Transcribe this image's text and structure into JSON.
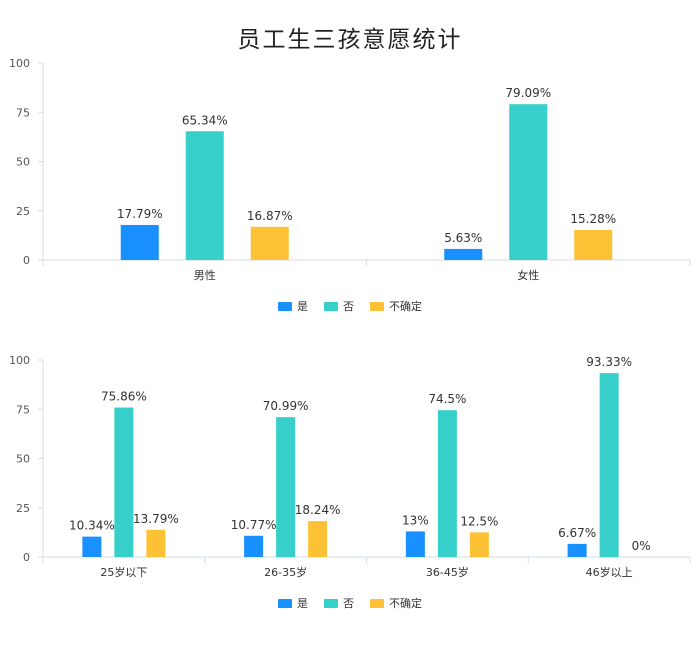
{
  "title": "员工生三孩意愿统计",
  "legend": [
    {
      "name": "是",
      "color": "#1890ff"
    },
    {
      "name": "否",
      "color": "#36cfc9"
    },
    {
      "name": "不确定",
      "color": "#fcc135"
    }
  ],
  "chart_data": [
    {
      "type": "bar",
      "categories": [
        "男性",
        "女性"
      ],
      "series": [
        {
          "name": "是",
          "values": [
            17.79,
            5.63
          ],
          "labels": [
            "17.79%",
            "5.63%"
          ]
        },
        {
          "name": "否",
          "values": [
            65.34,
            79.09
          ],
          "labels": [
            "65.34%",
            "79.09%"
          ]
        },
        {
          "name": "不确定",
          "values": [
            16.87,
            15.28
          ],
          "labels": [
            "16.87%",
            "15.28%"
          ]
        }
      ],
      "ylim": [
        0,
        100
      ],
      "yticks": [
        "0",
        "25",
        "50",
        "75",
        "100"
      ],
      "grid": false,
      "legend_position": "bottom"
    },
    {
      "type": "bar",
      "categories": [
        "25岁以下",
        "26-35岁",
        "36-45岁",
        "46岁以上"
      ],
      "series": [
        {
          "name": "是",
          "values": [
            10.34,
            10.77,
            13,
            6.67
          ],
          "labels": [
            "10.34%",
            "10.77%",
            "13%",
            "6.67%"
          ]
        },
        {
          "name": "否",
          "values": [
            75.86,
            70.99,
            74.5,
            93.33
          ],
          "labels": [
            "75.86%",
            "70.99%",
            "74.5%",
            "93.33%"
          ]
        },
        {
          "name": "不确定",
          "values": [
            13.79,
            18.24,
            12.5,
            0
          ],
          "labels": [
            "13.79%",
            "18.24%",
            "12.5%",
            "0%"
          ]
        }
      ],
      "ylim": [
        0,
        100
      ],
      "yticks": [
        "0",
        "25",
        "50",
        "75",
        "100"
      ],
      "grid": false,
      "legend_position": "bottom"
    }
  ]
}
